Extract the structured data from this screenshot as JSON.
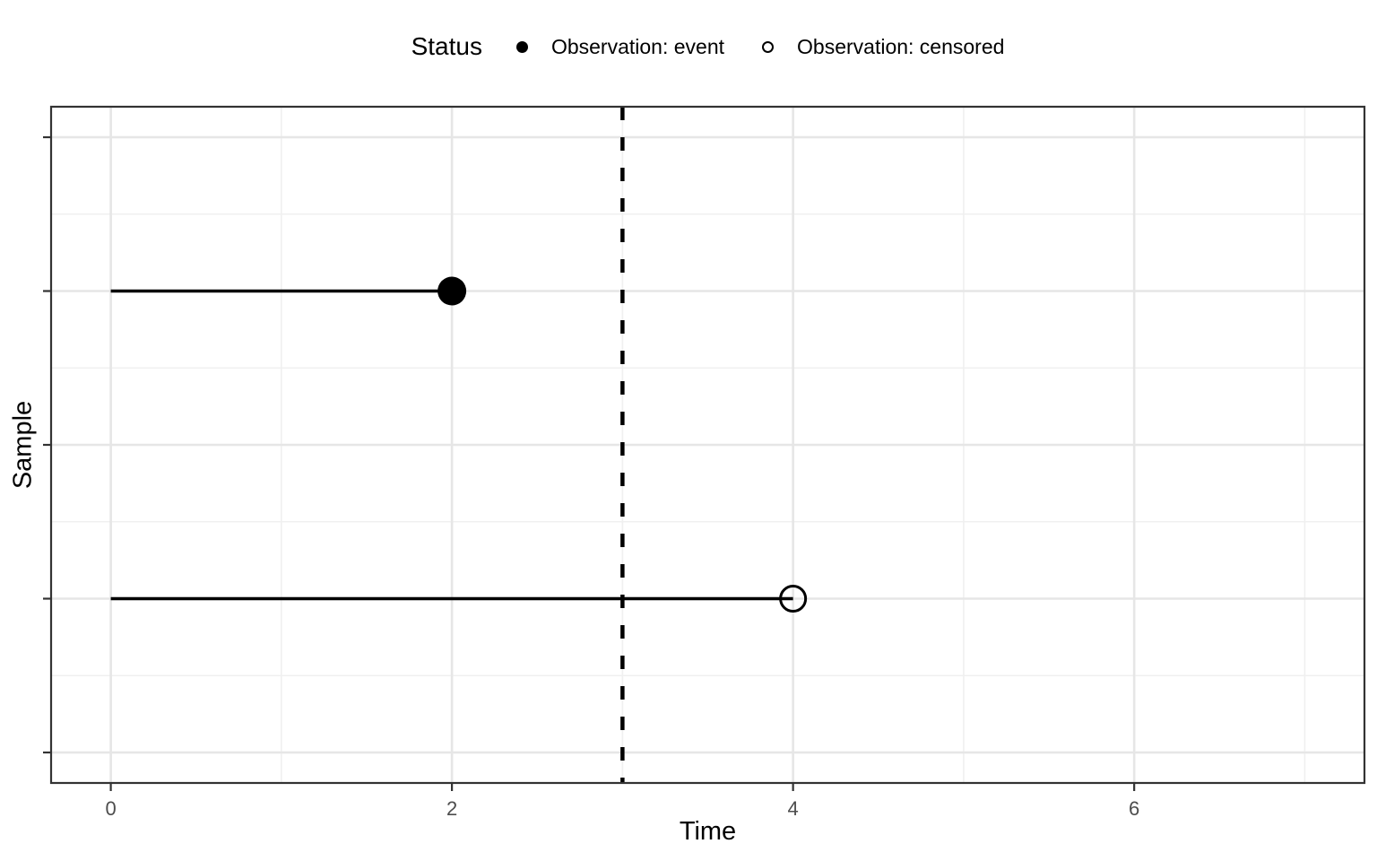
{
  "figure": {
    "background": "#FFFFFF"
  },
  "legend": {
    "title": "Status",
    "position": "top-center",
    "items": [
      {
        "label": "Observation: event",
        "marker": "filled-circle",
        "color": "#000000"
      },
      {
        "label": "Observation: censored",
        "marker": "open-circle",
        "color": "#000000"
      }
    ]
  },
  "chart_data": {
    "type": "segment",
    "title": "",
    "xlabel": "Time",
    "ylabel": "Sample",
    "x_ticks": [
      0,
      2,
      4,
      6
    ],
    "x_minor_gridlines": [
      1,
      3,
      5,
      7
    ],
    "xlim": [
      -0.35,
      7.35
    ],
    "y_axis": {
      "n_rows": 5,
      "tick_labels": [
        "",
        "",
        "",
        "",
        ""
      ]
    },
    "grid": true,
    "legend_position": "top",
    "segments": [
      {
        "row_from_top": 2,
        "x_start": 0,
        "x_end": 2,
        "status": "event",
        "marker": "filled-circle"
      },
      {
        "row_from_top": 4,
        "x_start": 0,
        "x_end": 4,
        "status": "censored",
        "marker": "open-circle"
      }
    ],
    "vline": {
      "x": 3,
      "linetype": "dashed",
      "color": "#000000"
    },
    "colors": {
      "segment": "#000000",
      "marker": "#000000",
      "grid_major": "#E6E6E6",
      "grid_minor": "#F0F0F0",
      "panel_border": "#333333",
      "tick": "#333333",
      "tick_label": "#4D4D4D",
      "axis_title": "#000000"
    }
  }
}
